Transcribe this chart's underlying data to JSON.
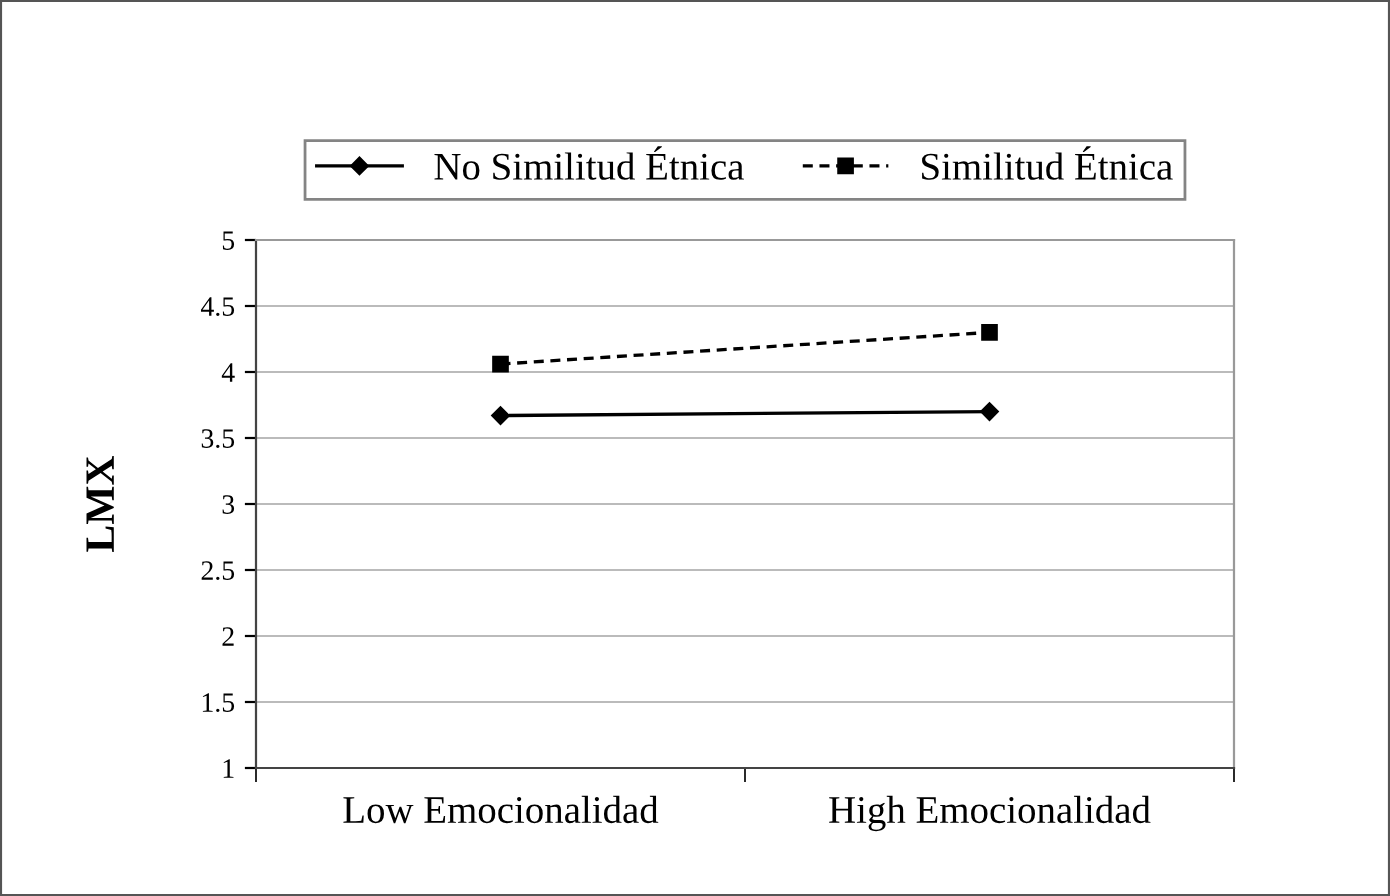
{
  "chart_data": {
    "type": "line",
    "ylabel": "LMX",
    "categories": [
      "Low Emocionalidad",
      "High Emocionalidad"
    ],
    "series": [
      {
        "name": "No Similitud Étnica",
        "color": "#000000",
        "values": [
          3.67,
          3.7
        ],
        "marker": "diamond",
        "line_style": "solid"
      },
      {
        "name": "Similitud Étnica",
        "color": "#000000",
        "values": [
          4.06,
          4.3
        ],
        "marker": "square",
        "line_style": "dashed"
      }
    ],
    "ylim": [
      1,
      5
    ],
    "yticks": [
      1,
      1.5,
      2,
      2.5,
      3,
      3.5,
      4,
      4.5,
      5
    ],
    "grid": "y",
    "legend": "top"
  }
}
